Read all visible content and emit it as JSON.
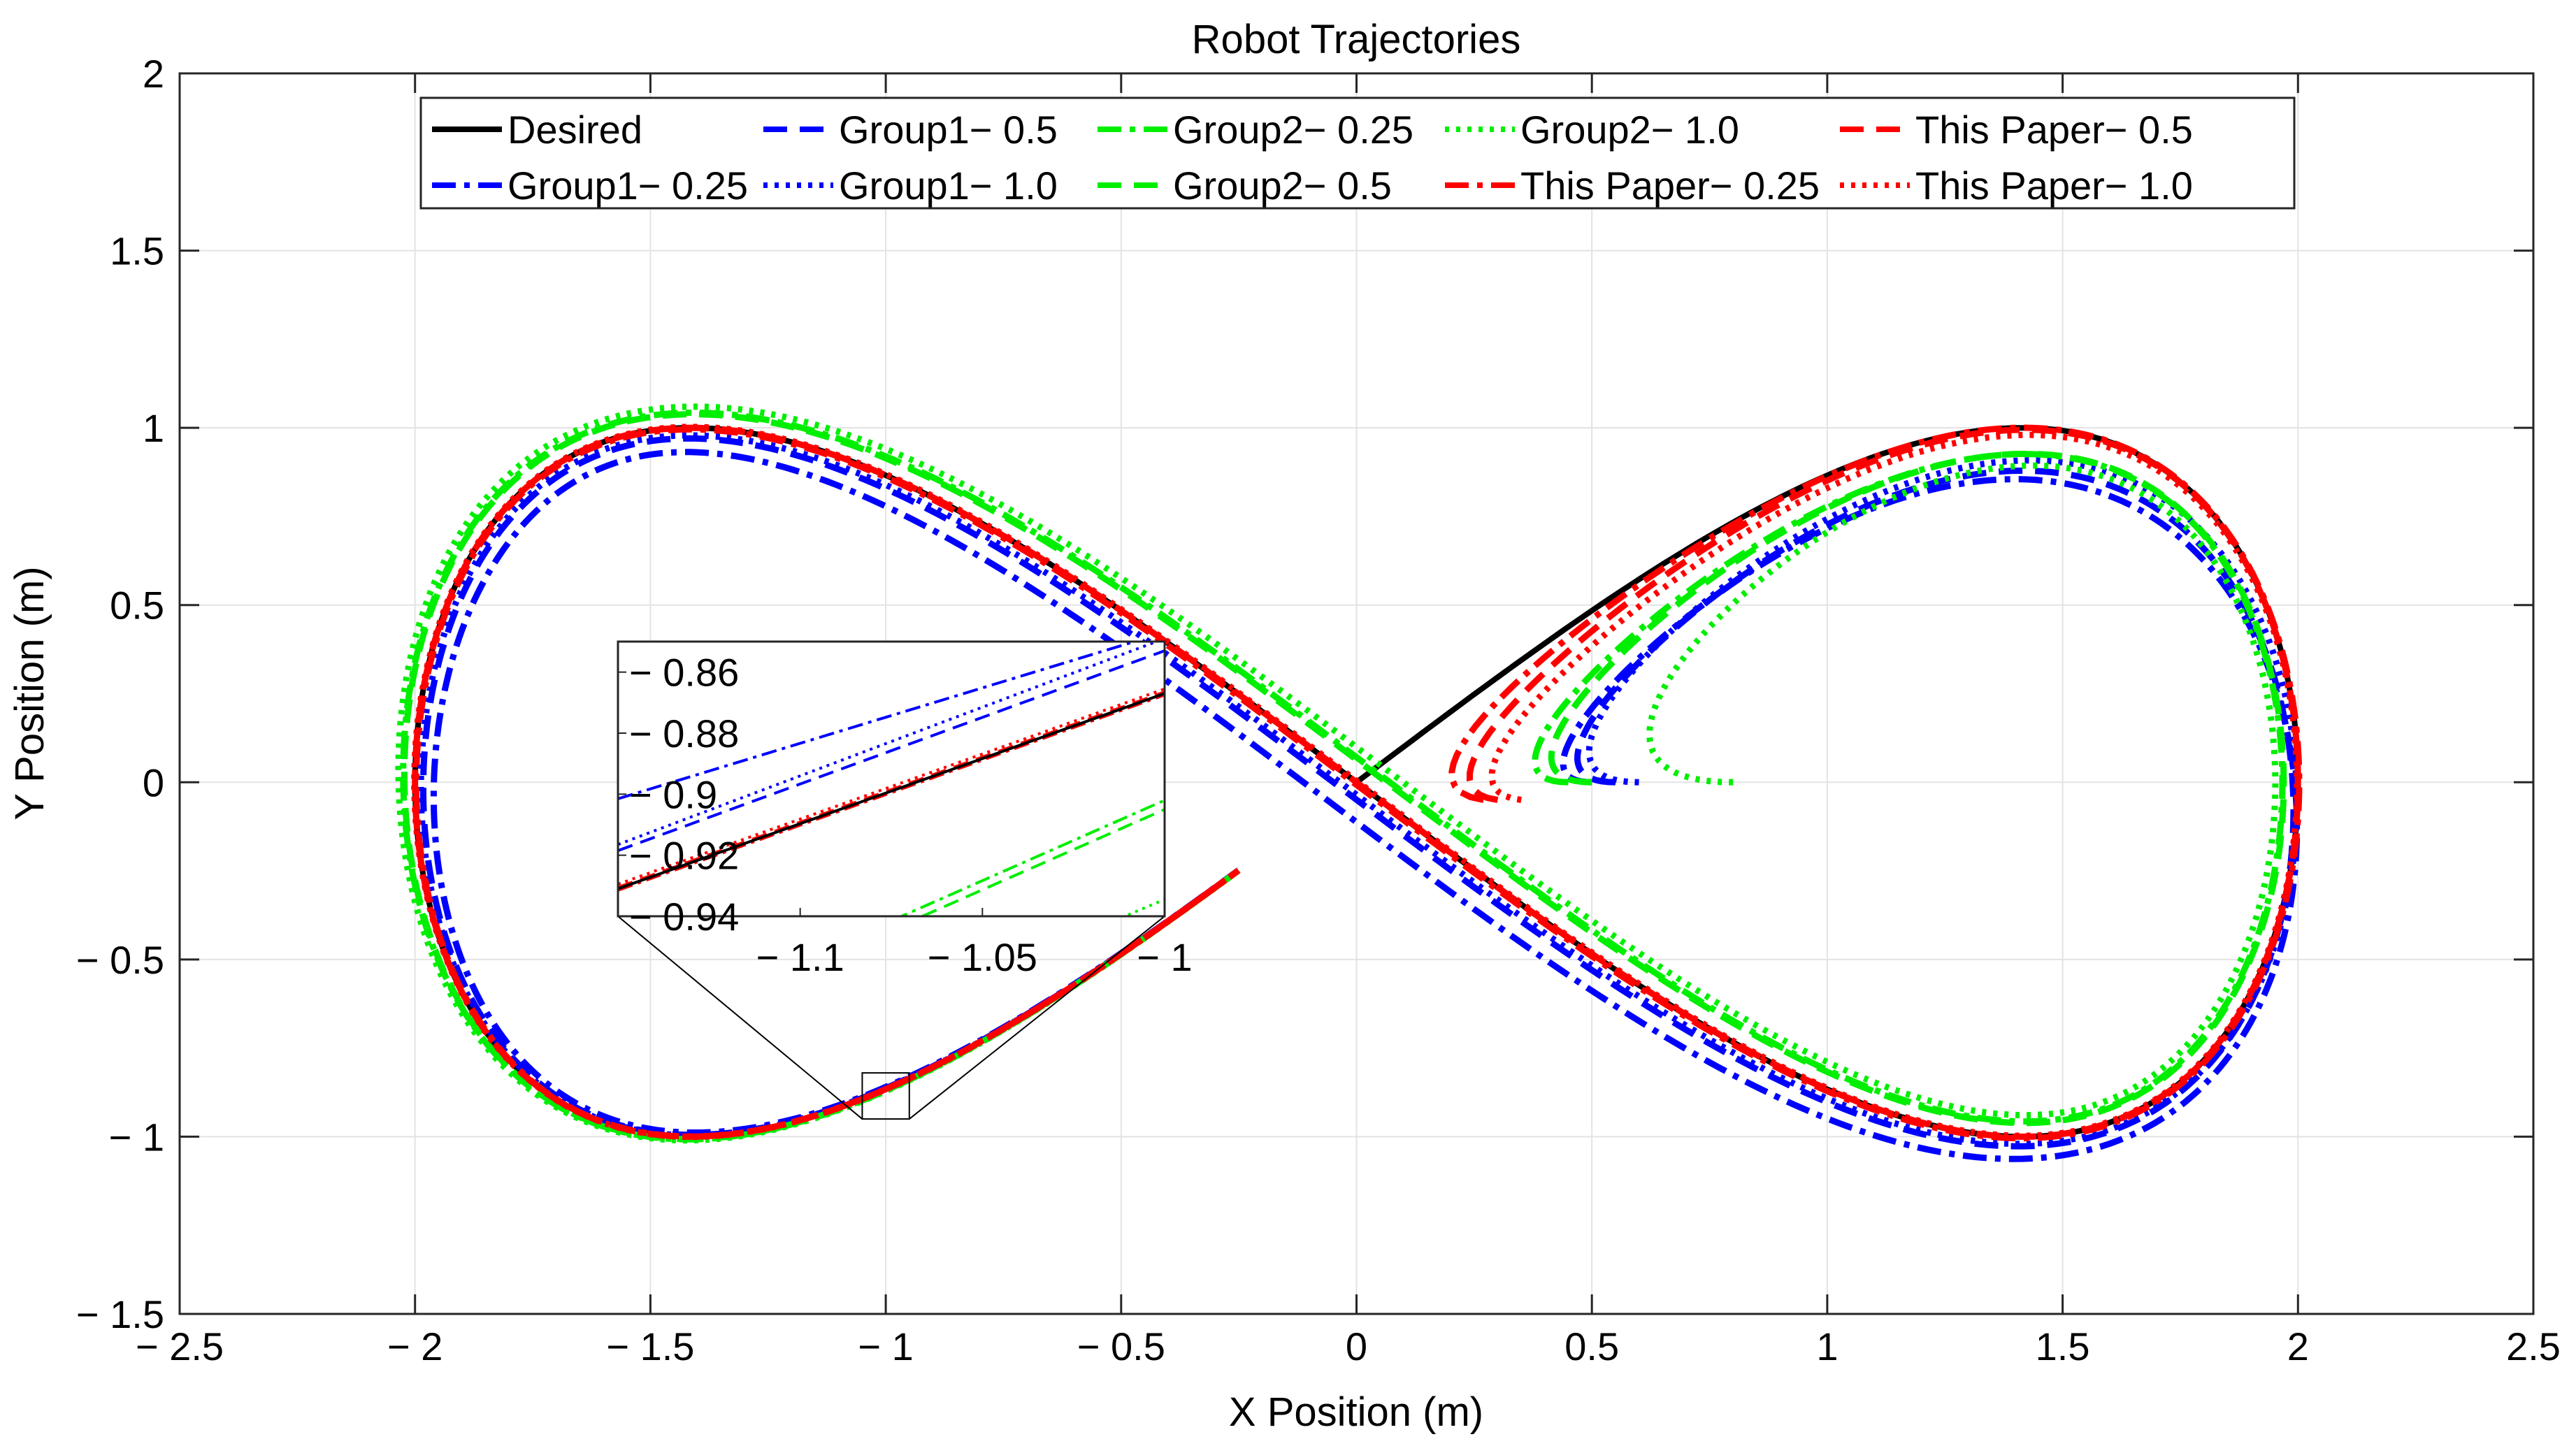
{
  "chart_data": {
    "type": "line",
    "title": "Robot Trajectories",
    "xlabel": "X Position (m)",
    "ylabel": "Y Position (m)",
    "xlim": [
      -2.5,
      2.5
    ],
    "ylim": [
      -1.5,
      2
    ],
    "xticks": [
      -2.5,
      -2,
      -1.5,
      -1,
      -0.5,
      0,
      0.5,
      1,
      1.5,
      2,
      2.5
    ],
    "xtick_labels": [
      "− 2.5",
      "− 2",
      "− 1.5",
      "− 1",
      "− 0.5",
      "0",
      "0.5",
      "1",
      "1.5",
      "2",
      "2.5"
    ],
    "yticks": [
      -1.5,
      -1,
      -0.5,
      0,
      0.5,
      1,
      1.5,
      2
    ],
    "ytick_labels": [
      "− 1.5",
      "− 1",
      "− 0.5",
      "0",
      "0.5",
      "1",
      "1.5",
      "2"
    ],
    "grid": true,
    "legend_position": "top",
    "desired": {
      "name": "Desired",
      "color": "#000000",
      "style": "solid",
      "shape": "lemniscate of Gerono scaled",
      "x_amplitude": 2,
      "y_amplitude": 1,
      "start": [
        0,
        0
      ]
    },
    "series": [
      {
        "name": "Desired",
        "color": "#000000",
        "style": "solid",
        "start": [
          0,
          0
        ],
        "lag": 0,
        "offset": 0
      },
      {
        "name": "Group1− 0.25",
        "color": "#0000ff",
        "style": "dashdot",
        "start": [
          0.5,
          0
        ],
        "lag": 0.45,
        "offset": 0.08
      },
      {
        "name": "Group1− 0.5",
        "color": "#0000ff",
        "style": "dashed",
        "start": [
          0.55,
          0
        ],
        "lag": 0.4,
        "offset": 0.035
      },
      {
        "name": "Group1− 1.0",
        "color": "#0000ff",
        "style": "dotted",
        "start": [
          0.6,
          0
        ],
        "lag": 0.35,
        "offset": 0.025
      },
      {
        "name": "Group2− 0.25",
        "color": "#00ee00",
        "style": "dashdot",
        "start": [
          0.45,
          0
        ],
        "lag": 0.3,
        "offset": -0.05
      },
      {
        "name": "Group2− 0.5",
        "color": "#00ee00",
        "style": "dashed",
        "start": [
          0.5,
          0
        ],
        "lag": 0.3,
        "offset": -0.045
      },
      {
        "name": "Group2− 1.0",
        "color": "#00ee00",
        "style": "dotted",
        "start": [
          0.8,
          0
        ],
        "lag": 0.35,
        "offset": -0.07
      },
      {
        "name": "This Paper− 0.25",
        "color": "#ff0000",
        "style": "dashdot",
        "start": [
          0.27,
          -0.05
        ],
        "lag": 0.1,
        "offset": 0.005
      },
      {
        "name": "This Paper− 0.5",
        "color": "#ff0000",
        "style": "dashed",
        "start": [
          0.3,
          -0.05
        ],
        "lag": 0.15,
        "offset": 0.0
      },
      {
        "name": "This Paper− 1.0",
        "color": "#ff0000",
        "style": "dotted",
        "start": [
          0.35,
          -0.05
        ],
        "lag": 0.2,
        "offset": -0.003
      }
    ],
    "inset": {
      "xlim": [
        -1.15,
        -1.0
      ],
      "ylim": [
        -0.94,
        -0.85
      ],
      "xticks": [
        -1.1,
        -1.05,
        -1
      ],
      "xtick_labels": [
        "− 1.1",
        "− 1.05",
        "− 1"
      ],
      "yticks": [
        -0.86,
        -0.88,
        -0.9,
        -0.92,
        -0.94
      ],
      "ytick_labels": [
        "− 0.86",
        "− 0.88",
        "− 0.9",
        "− 0.92",
        "− 0.94"
      ],
      "zoom_box": {
        "xlim": [
          -1.05,
          -0.95
        ],
        "ylim": [
          -0.95,
          -0.82
        ]
      },
      "lines": [
        {
          "color": "#0000ff",
          "style": "dashdot",
          "y_at_xmin": -0.9015,
          "y_at_xmax": -0.847
        },
        {
          "color": "#0000ff",
          "style": "dotted",
          "y_at_xmin": -0.9165,
          "y_at_xmax": -0.849
        },
        {
          "color": "#0000ff",
          "style": "dashed",
          "y_at_xmin": -0.9185,
          "y_at_xmax": -0.853
        },
        {
          "color": "#ff0000",
          "style": "dotted",
          "y_at_xmin": -0.9295,
          "y_at_xmax": -0.8655
        },
        {
          "color": "#ff0000",
          "style": "dashed",
          "y_at_xmin": -0.9305,
          "y_at_xmax": -0.8665
        },
        {
          "color": "#ff0000",
          "style": "dashdot",
          "y_at_xmin": -0.9315,
          "y_at_xmax": -0.8675
        },
        {
          "color": "#000000",
          "style": "solid",
          "y_at_xmin": -0.931,
          "y_at_xmax": -0.867
        },
        {
          "color": "#00ee00",
          "style": "dashdot",
          "y_at_xmin": -0.981,
          "y_at_xmax": -0.902
        },
        {
          "color": "#00ee00",
          "style": "dashed",
          "y_at_xmin": -0.984,
          "y_at_xmax": -0.905
        },
        {
          "color": "#00ee00",
          "style": "dotted",
          "y_at_xmin": -1.01,
          "y_at_xmax": -0.9345
        }
      ]
    }
  }
}
